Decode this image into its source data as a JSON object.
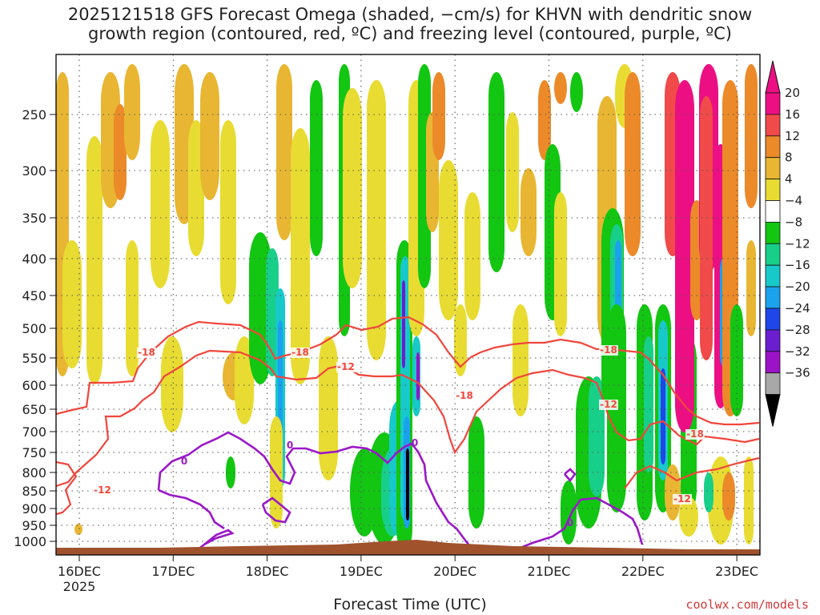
{
  "chart_data": {
    "type": "heatmap",
    "title_line1": "2025121518 GFS Forecast Omega (shaded, −cm/s) for KHVN with dendritic snow",
    "title_line2": "growth region (contoured, red, ºC) and freezing level (contoured, purple, ºC)",
    "xlabel": "Forecast Time (UTC)",
    "x_ticks": [
      "16DEC",
      "17DEC",
      "18DEC",
      "19DEC",
      "20DEC",
      "21DEC",
      "22DEC",
      "23DEC"
    ],
    "x_year": "2025",
    "y_ticks": [
      "250",
      "300",
      "350",
      "400",
      "450",
      "500",
      "550",
      "600",
      "650",
      "700",
      "750",
      "800",
      "850",
      "900",
      "950",
      "1000"
    ],
    "colorbar_ticks": [
      "20",
      "16",
      "12",
      "8",
      "4",
      "−4",
      "−8",
      "−12",
      "−16",
      "−20",
      "−24",
      "−28",
      "−32",
      "−36"
    ],
    "colors": {
      "c20": "#ec0f83",
      "c16": "#f04a4a",
      "c12": "#ec8a2a",
      "c8": "#e8b632",
      "c4": "#e8dc32",
      "c0": "#ffffff",
      "cm4": "#12c612",
      "cm8": "#18cf8a",
      "cm12": "#17c9c9",
      "cm16": "#1aa2ee",
      "cm20": "#1e46e8",
      "cm24": "#6a1ed0",
      "cm28": "#9b12c7",
      "cm32": "#a8a8a8",
      "cm36": "#000000",
      "dgz": "#f0463c",
      "freezing": "#9a18c8",
      "terrain": "#a0522d"
    },
    "contour_labels": {
      "dgz": [
        "-18",
        "-18",
        "-12",
        "-18",
        "-18",
        "-12",
        "-18",
        "-12",
        "-12"
      ],
      "freezing": [
        "0",
        "0",
        "0",
        "0"
      ]
    }
  },
  "credit": "coolwx.com/models"
}
